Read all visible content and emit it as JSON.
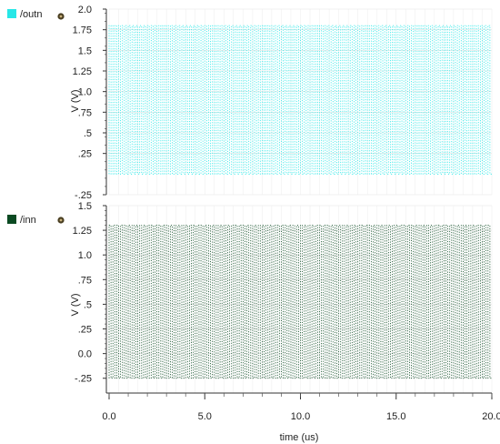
{
  "chart_data": {
    "type": "line",
    "x_axis": {
      "label": "time (us)",
      "range": [
        0.0,
        20.0
      ],
      "ticks": [
        0.0,
        5.0,
        10.0,
        15.0,
        20.0
      ],
      "tick_labels": [
        "0.0",
        "5.0",
        "10.0",
        "15.0",
        "20.0"
      ]
    },
    "panels": [
      {
        "signal": "/outn",
        "color": "#27e7e7",
        "ylabel": "V (V)",
        "ylim": [
          -0.25,
          2.0
        ],
        "y_ticks": [
          -0.25,
          0.25,
          0.5,
          0.75,
          1.0,
          1.25,
          1.5,
          1.75,
          2.0
        ],
        "y_tick_labels": [
          "-.25",
          ".25",
          ".5",
          ".75",
          "1.0",
          "1.25",
          "1.5",
          "1.75",
          "2.0"
        ],
        "low_level": 0.0,
        "high_level": 1.8,
        "cycles": 100
      },
      {
        "signal": "/inn",
        "color": "#0b4a22",
        "ylabel": "V (V)",
        "ylim": [
          -0.4,
          1.5
        ],
        "y_ticks": [
          -0.25,
          0.0,
          0.25,
          0.5,
          0.75,
          1.0,
          1.25,
          1.5
        ],
        "y_tick_labels": [
          "-.25",
          "0.0",
          ".25",
          ".5",
          ".75",
          "1.0",
          "1.25",
          "1.5"
        ],
        "low_level": -0.25,
        "high_level": 1.3,
        "cycles": 100
      }
    ]
  }
}
